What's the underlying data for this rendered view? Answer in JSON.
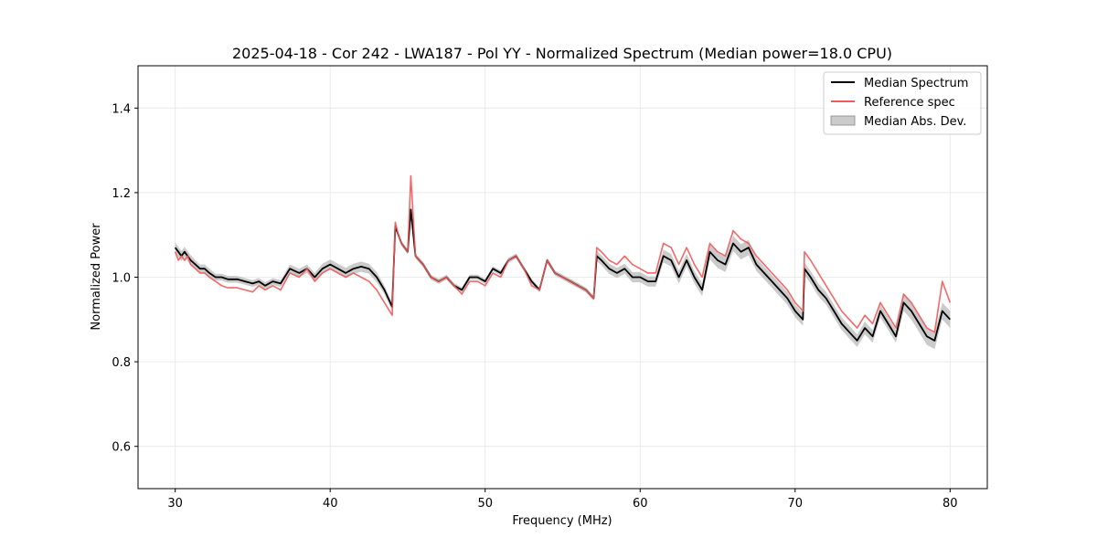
{
  "chart_data": {
    "type": "line",
    "title": "2025-04-18 - Cor 242 - LWA187 - Pol YY - Normalized Spectrum (Median power=18.0 CPU)",
    "xlabel": "Frequency (MHz)",
    "ylabel": "Normalized Power",
    "xlim": [
      27.6,
      82.4
    ],
    "ylim": [
      0.5,
      1.5
    ],
    "xticks": [
      30,
      40,
      50,
      60,
      70,
      80
    ],
    "yticks": [
      0.6,
      0.8,
      1.0,
      1.2,
      1.4
    ],
    "xtick_labels": [
      "30",
      "40",
      "50",
      "60",
      "70",
      "80"
    ],
    "ytick_labels": [
      "0.6",
      "0.8",
      "1.0",
      "1.2",
      "1.4"
    ],
    "grid": true,
    "legend_position": "top-right",
    "legend": [
      "Median Spectrum",
      "Reference spec",
      "Median Abs. Dev."
    ],
    "colors": {
      "median": "#000000",
      "reference": "#f05a5a",
      "mad": "#a8a8a8"
    },
    "series": [
      {
        "name": "Median Spectrum",
        "x": [
          30.0,
          30.2,
          30.4,
          30.6,
          30.8,
          31.0,
          31.3,
          31.6,
          31.9,
          32.2,
          32.6,
          33.0,
          33.4,
          34.0,
          34.5,
          35.0,
          35.4,
          35.8,
          36.3,
          36.8,
          37.4,
          38.0,
          38.5,
          39.0,
          39.5,
          40.0,
          40.5,
          41.0,
          41.5,
          42.0,
          42.5,
          43.0,
          43.5,
          44.0,
          44.2,
          44.4,
          44.6,
          45.0,
          45.2,
          45.5,
          46.0,
          46.5,
          47.0,
          47.5,
          48.0,
          48.5,
          49.0,
          49.5,
          50.0,
          50.5,
          51.0,
          51.5,
          52.0,
          52.5,
          53.0,
          53.5,
          54.0,
          54.5,
          55.0,
          55.5,
          56.0,
          56.5,
          57.0,
          57.2,
          57.5,
          58.0,
          58.5,
          59.0,
          59.5,
          60.0,
          60.5,
          61.0,
          61.5,
          62.0,
          62.5,
          63.0,
          63.5,
          64.0,
          64.5,
          65.0,
          65.5,
          66.0,
          66.5,
          67.0,
          67.5,
          68.0,
          68.5,
          69.0,
          69.5,
          70.0,
          70.5,
          70.6,
          71.0,
          71.5,
          72.0,
          72.5,
          73.0,
          73.5,
          74.0,
          74.5,
          75.0,
          75.5,
          76.0,
          76.5,
          77.0,
          77.5,
          78.0,
          78.5,
          79.0,
          79.5,
          80.0
        ],
        "values": [
          1.07,
          1.06,
          1.05,
          1.06,
          1.05,
          1.04,
          1.03,
          1.02,
          1.02,
          1.01,
          1.0,
          1.0,
          0.995,
          0.995,
          0.99,
          0.985,
          0.99,
          0.98,
          0.99,
          0.985,
          1.02,
          1.01,
          1.02,
          1.0,
          1.02,
          1.03,
          1.02,
          1.01,
          1.02,
          1.025,
          1.02,
          1.0,
          0.97,
          0.93,
          1.12,
          1.1,
          1.08,
          1.06,
          1.16,
          1.05,
          1.03,
          1.0,
          0.99,
          1.0,
          0.98,
          0.97,
          1.0,
          1.0,
          0.99,
          1.02,
          1.01,
          1.04,
          1.05,
          1.02,
          0.99,
          0.97,
          1.04,
          1.01,
          1.0,
          0.99,
          0.98,
          0.97,
          0.95,
          1.05,
          1.04,
          1.02,
          1.01,
          1.02,
          1.0,
          1.0,
          0.99,
          0.99,
          1.05,
          1.04,
          1.0,
          1.04,
          1.0,
          0.97,
          1.06,
          1.04,
          1.03,
          1.08,
          1.06,
          1.07,
          1.03,
          1.01,
          0.99,
          0.97,
          0.95,
          0.92,
          0.9,
          1.02,
          1.0,
          0.97,
          0.95,
          0.92,
          0.89,
          0.87,
          0.85,
          0.88,
          0.86,
          0.92,
          0.89,
          0.86,
          0.94,
          0.92,
          0.89,
          0.86,
          0.85,
          0.92,
          0.9
        ]
      },
      {
        "name": "Reference spec",
        "x": [
          30.0,
          30.2,
          30.4,
          30.6,
          30.8,
          31.0,
          31.3,
          31.6,
          31.9,
          32.2,
          32.6,
          33.0,
          33.4,
          34.0,
          34.5,
          35.0,
          35.4,
          35.8,
          36.3,
          36.8,
          37.4,
          38.0,
          38.5,
          39.0,
          39.5,
          40.0,
          40.5,
          41.0,
          41.5,
          42.0,
          42.5,
          43.0,
          43.5,
          44.0,
          44.2,
          44.4,
          44.6,
          45.0,
          45.2,
          45.5,
          46.0,
          46.5,
          47.0,
          47.5,
          48.0,
          48.5,
          49.0,
          49.5,
          50.0,
          50.5,
          51.0,
          51.5,
          52.0,
          52.5,
          53.0,
          53.5,
          54.0,
          54.5,
          55.0,
          55.5,
          56.0,
          56.5,
          57.0,
          57.2,
          57.5,
          58.0,
          58.5,
          59.0,
          59.5,
          60.0,
          60.5,
          61.0,
          61.5,
          62.0,
          62.5,
          63.0,
          63.5,
          64.0,
          64.5,
          65.0,
          65.5,
          66.0,
          66.5,
          67.0,
          67.5,
          68.0,
          68.5,
          69.0,
          69.5,
          70.0,
          70.5,
          70.6,
          71.0,
          71.5,
          72.0,
          72.5,
          73.0,
          73.5,
          74.0,
          74.5,
          75.0,
          75.5,
          76.0,
          76.5,
          77.0,
          77.5,
          78.0,
          78.5,
          79.0,
          79.5,
          80.0
        ],
        "values": [
          1.06,
          1.04,
          1.05,
          1.04,
          1.05,
          1.03,
          1.02,
          1.01,
          1.01,
          1.0,
          0.99,
          0.98,
          0.975,
          0.975,
          0.97,
          0.965,
          0.98,
          0.97,
          0.98,
          0.97,
          1.01,
          1.0,
          1.02,
          0.99,
          1.01,
          1.02,
          1.01,
          1.0,
          1.01,
          1.0,
          0.99,
          0.97,
          0.94,
          0.91,
          1.13,
          1.1,
          1.08,
          1.06,
          1.24,
          1.05,
          1.03,
          1.0,
          0.99,
          1.0,
          0.98,
          0.96,
          0.99,
          0.99,
          0.98,
          1.01,
          1.0,
          1.04,
          1.05,
          1.02,
          0.98,
          0.97,
          1.04,
          1.01,
          1.0,
          0.99,
          0.98,
          0.97,
          0.95,
          1.07,
          1.06,
          1.04,
          1.03,
          1.05,
          1.03,
          1.02,
          1.01,
          1.01,
          1.08,
          1.07,
          1.03,
          1.07,
          1.03,
          1.0,
          1.08,
          1.06,
          1.05,
          1.11,
          1.09,
          1.08,
          1.05,
          1.03,
          1.01,
          0.99,
          0.97,
          0.94,
          0.92,
          1.06,
          1.04,
          1.01,
          0.98,
          0.95,
          0.92,
          0.9,
          0.88,
          0.91,
          0.89,
          0.94,
          0.91,
          0.88,
          0.96,
          0.94,
          0.91,
          0.88,
          0.87,
          0.99,
          0.94
        ]
      }
    ],
    "mad": {
      "name": "Median Abs. Dev.",
      "half_width": [
        0.012,
        0.012,
        0.012,
        0.012,
        0.012,
        0.012,
        0.01,
        0.01,
        0.01,
        0.01,
        0.008,
        0.008,
        0.008,
        0.008,
        0.008,
        0.008,
        0.008,
        0.008,
        0.008,
        0.008,
        0.01,
        0.01,
        0.01,
        0.01,
        0.012,
        0.012,
        0.012,
        0.012,
        0.012,
        0.012,
        0.012,
        0.012,
        0.01,
        0.01,
        0.006,
        0.006,
        0.006,
        0.006,
        0.006,
        0.006,
        0.006,
        0.006,
        0.006,
        0.006,
        0.006,
        0.006,
        0.006,
        0.006,
        0.006,
        0.006,
        0.006,
        0.006,
        0.006,
        0.006,
        0.006,
        0.006,
        0.006,
        0.006,
        0.006,
        0.006,
        0.006,
        0.006,
        0.006,
        0.012,
        0.012,
        0.012,
        0.012,
        0.012,
        0.012,
        0.012,
        0.012,
        0.012,
        0.015,
        0.015,
        0.015,
        0.015,
        0.015,
        0.015,
        0.018,
        0.018,
        0.018,
        0.018,
        0.018,
        0.018,
        0.015,
        0.015,
        0.015,
        0.015,
        0.015,
        0.015,
        0.015,
        0.015,
        0.015,
        0.015,
        0.015,
        0.015,
        0.015,
        0.015,
        0.015,
        0.015,
        0.015,
        0.015,
        0.015,
        0.015,
        0.02,
        0.02,
        0.02,
        0.02,
        0.02,
        0.02,
        0.02
      ]
    }
  }
}
